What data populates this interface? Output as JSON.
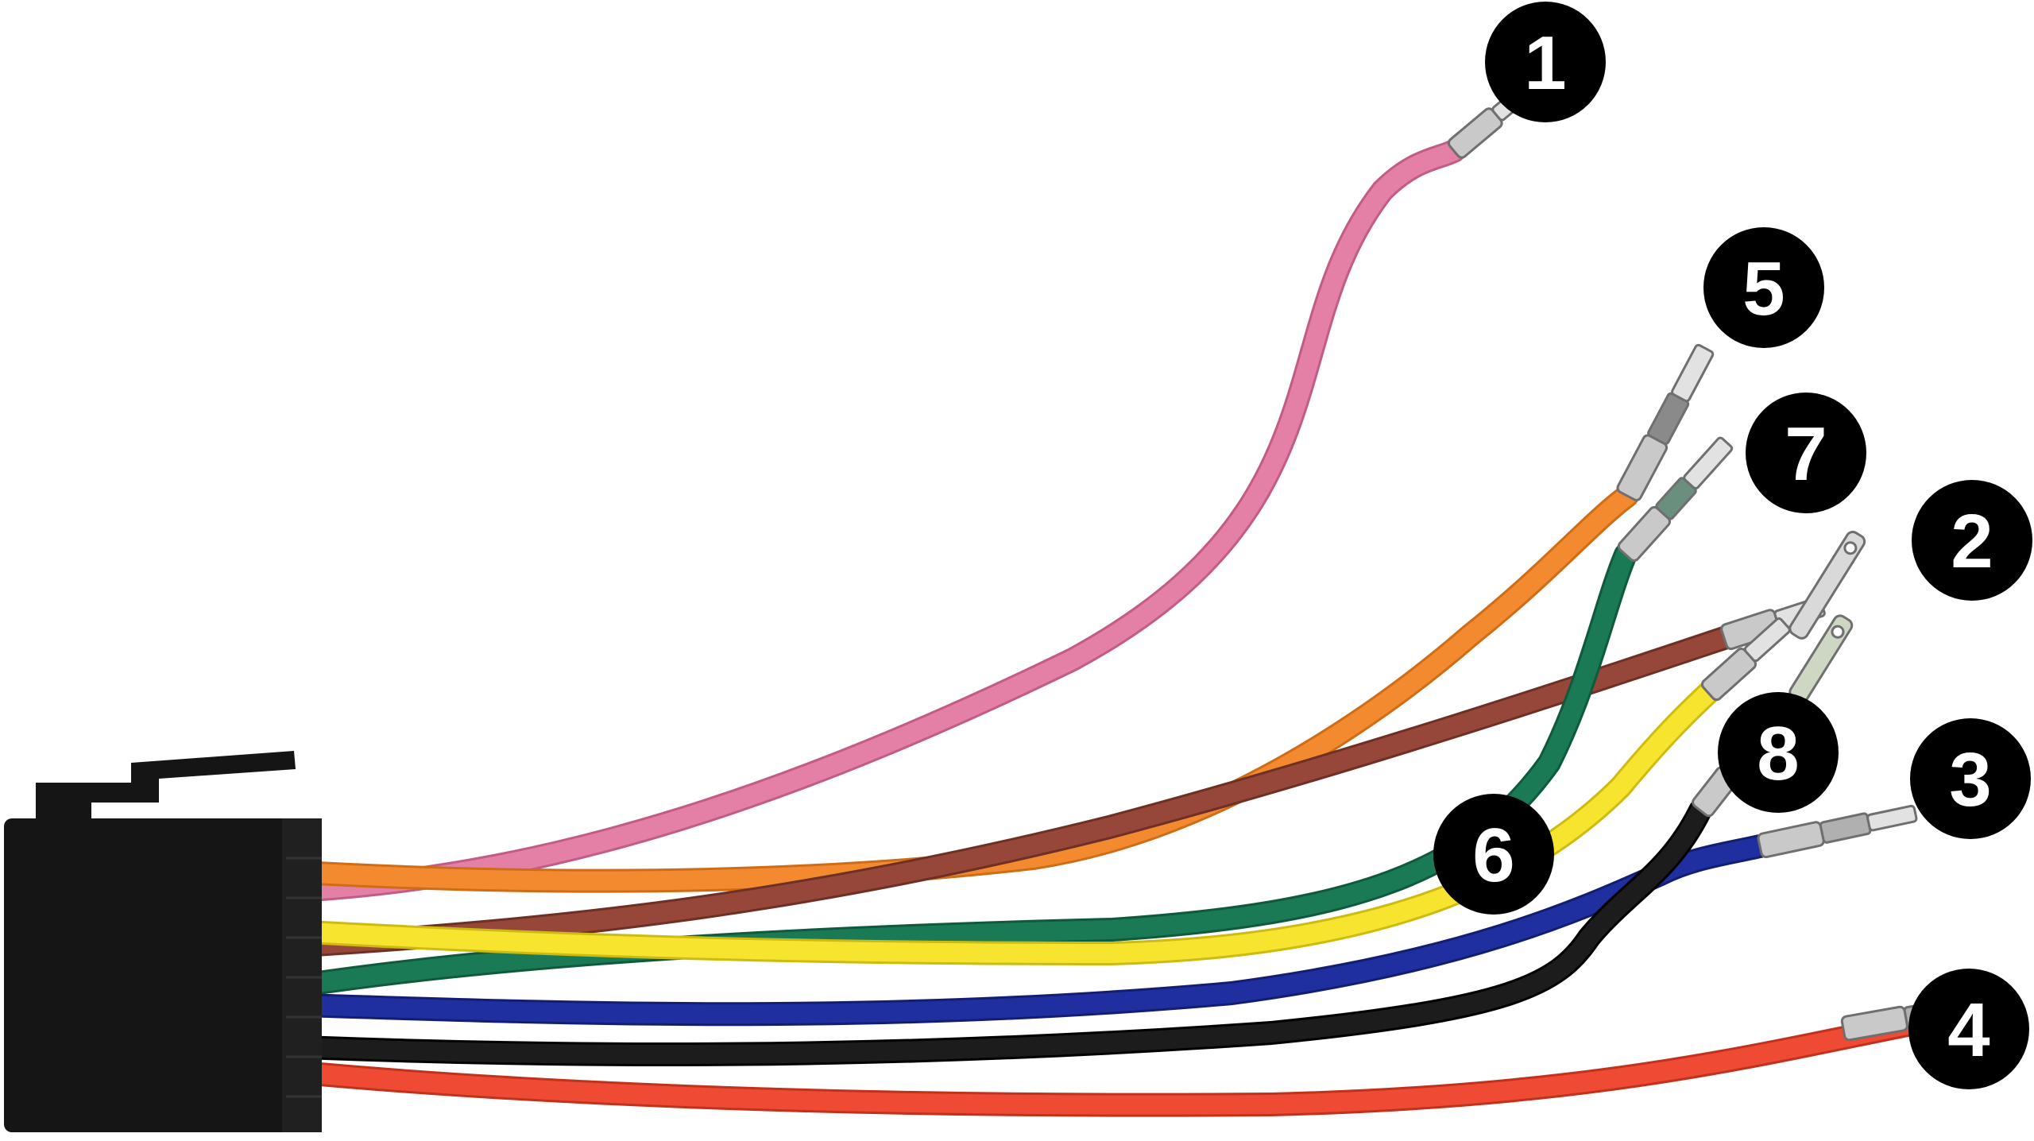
{
  "colors": {
    "background": "#ffffff",
    "connector": "#151515",
    "badge": "#000000",
    "badge_text": "#ffffff",
    "terminal_metal": "#c9c9c9"
  },
  "wires": [
    {
      "id": "pink",
      "color": "#e47fa6",
      "dark": "#c25c86"
    },
    {
      "id": "orange",
      "color": "#f48a30",
      "dark": "#cf6c16"
    },
    {
      "id": "brown",
      "color": "#96473a",
      "dark": "#6e2f25"
    },
    {
      "id": "green",
      "color": "#1a7a55",
      "dark": "#0f5a3c"
    },
    {
      "id": "yellow",
      "color": "#f7e42e",
      "dark": "#cdbb10"
    },
    {
      "id": "blue",
      "color": "#1f2fa0",
      "dark": "#131e72"
    },
    {
      "id": "black",
      "color": "#1c1c1c",
      "dark": "#000000"
    },
    {
      "id": "red",
      "color": "#ef4a33",
      "dark": "#c1311c"
    }
  ],
  "badges": [
    {
      "label": "1"
    },
    {
      "label": "5"
    },
    {
      "label": "7"
    },
    {
      "label": "2"
    },
    {
      "label": "8"
    },
    {
      "label": "3"
    },
    {
      "label": "6"
    },
    {
      "label": "4"
    }
  ]
}
